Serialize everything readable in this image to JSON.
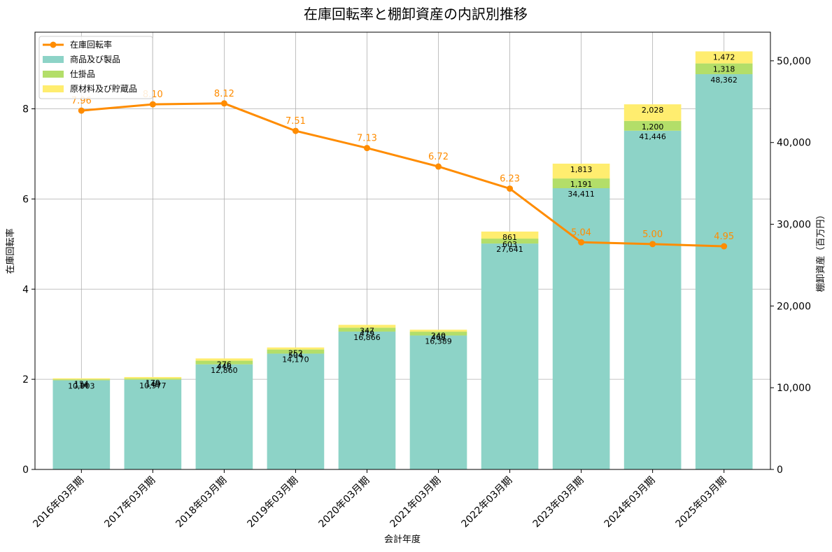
{
  "chart_data": {
    "type": "bar",
    "title": "在庫回転率と棚卸資産の内訳別推移",
    "xlabel": "会計年度",
    "ylabel_left": "在庫回転率",
    "ylabel_right": "棚卸資産（百万円）",
    "ylim_left": [
      0,
      9.7
    ],
    "ylim_right": [
      0,
      53500
    ],
    "yticks_left": [
      0,
      2,
      4,
      6,
      8
    ],
    "yticks_right": [
      0,
      10000,
      20000,
      30000,
      40000,
      50000
    ],
    "yticks_left_labels": [
      "0",
      "2",
      "4",
      "6",
      "8"
    ],
    "yticks_right_labels": [
      "0",
      "10,000",
      "20,000",
      "30,000",
      "40,000",
      "50,000"
    ],
    "grid": true,
    "legend_position": "top-left",
    "categories": [
      "2016年03月期",
      "2017年03月期",
      "2018年03月期",
      "2019年03月期",
      "2020年03月期",
      "2021年03月期",
      "2022年03月期",
      "2023年03月期",
      "2024年03月期",
      "2025年03月期"
    ],
    "series": [
      {
        "name": "商品及び製品",
        "color": "#8dd3c7",
        "values": [
          10903,
          10977,
          12860,
          14170,
          16866,
          16389,
          27641,
          34411,
          41446,
          48362
        ],
        "labels": [
          "10,903",
          "10,977",
          "12,860",
          "14,170",
          "16,866",
          "16,389",
          "27,641",
          "34,411",
          "41,446",
          "48,362"
        ]
      },
      {
        "name": "仕掛品",
        "color": "#b3de69",
        "values": [
          114,
          149,
          446,
          504,
          479,
          468,
          603,
          1191,
          1200,
          1318
        ],
        "labels": [
          "114",
          "149",
          "446",
          "504",
          "479",
          "468",
          "603",
          "1,191",
          "1,200",
          "1,318"
        ]
      },
      {
        "name": "原材料及び貯蔵品",
        "color": "#ffed6f",
        "values": [
          134,
          179,
          276,
          252,
          347,
          240,
          861,
          1813,
          2028,
          1472
        ],
        "labels": [
          "134",
          "179",
          "276",
          "252",
          "347",
          "240",
          "861",
          "1,813",
          "2,028",
          "1,472"
        ]
      }
    ],
    "line_series": {
      "name": "在庫回転率",
      "color": "#ff8c00",
      "values": [
        7.96,
        8.1,
        8.12,
        7.51,
        7.13,
        6.72,
        6.23,
        5.04,
        5.0,
        4.95
      ],
      "labels": [
        "7.96",
        "8.10",
        "8.12",
        "7.51",
        "7.13",
        "6.72",
        "6.23",
        "5.04",
        "5.00",
        "4.95"
      ]
    }
  }
}
